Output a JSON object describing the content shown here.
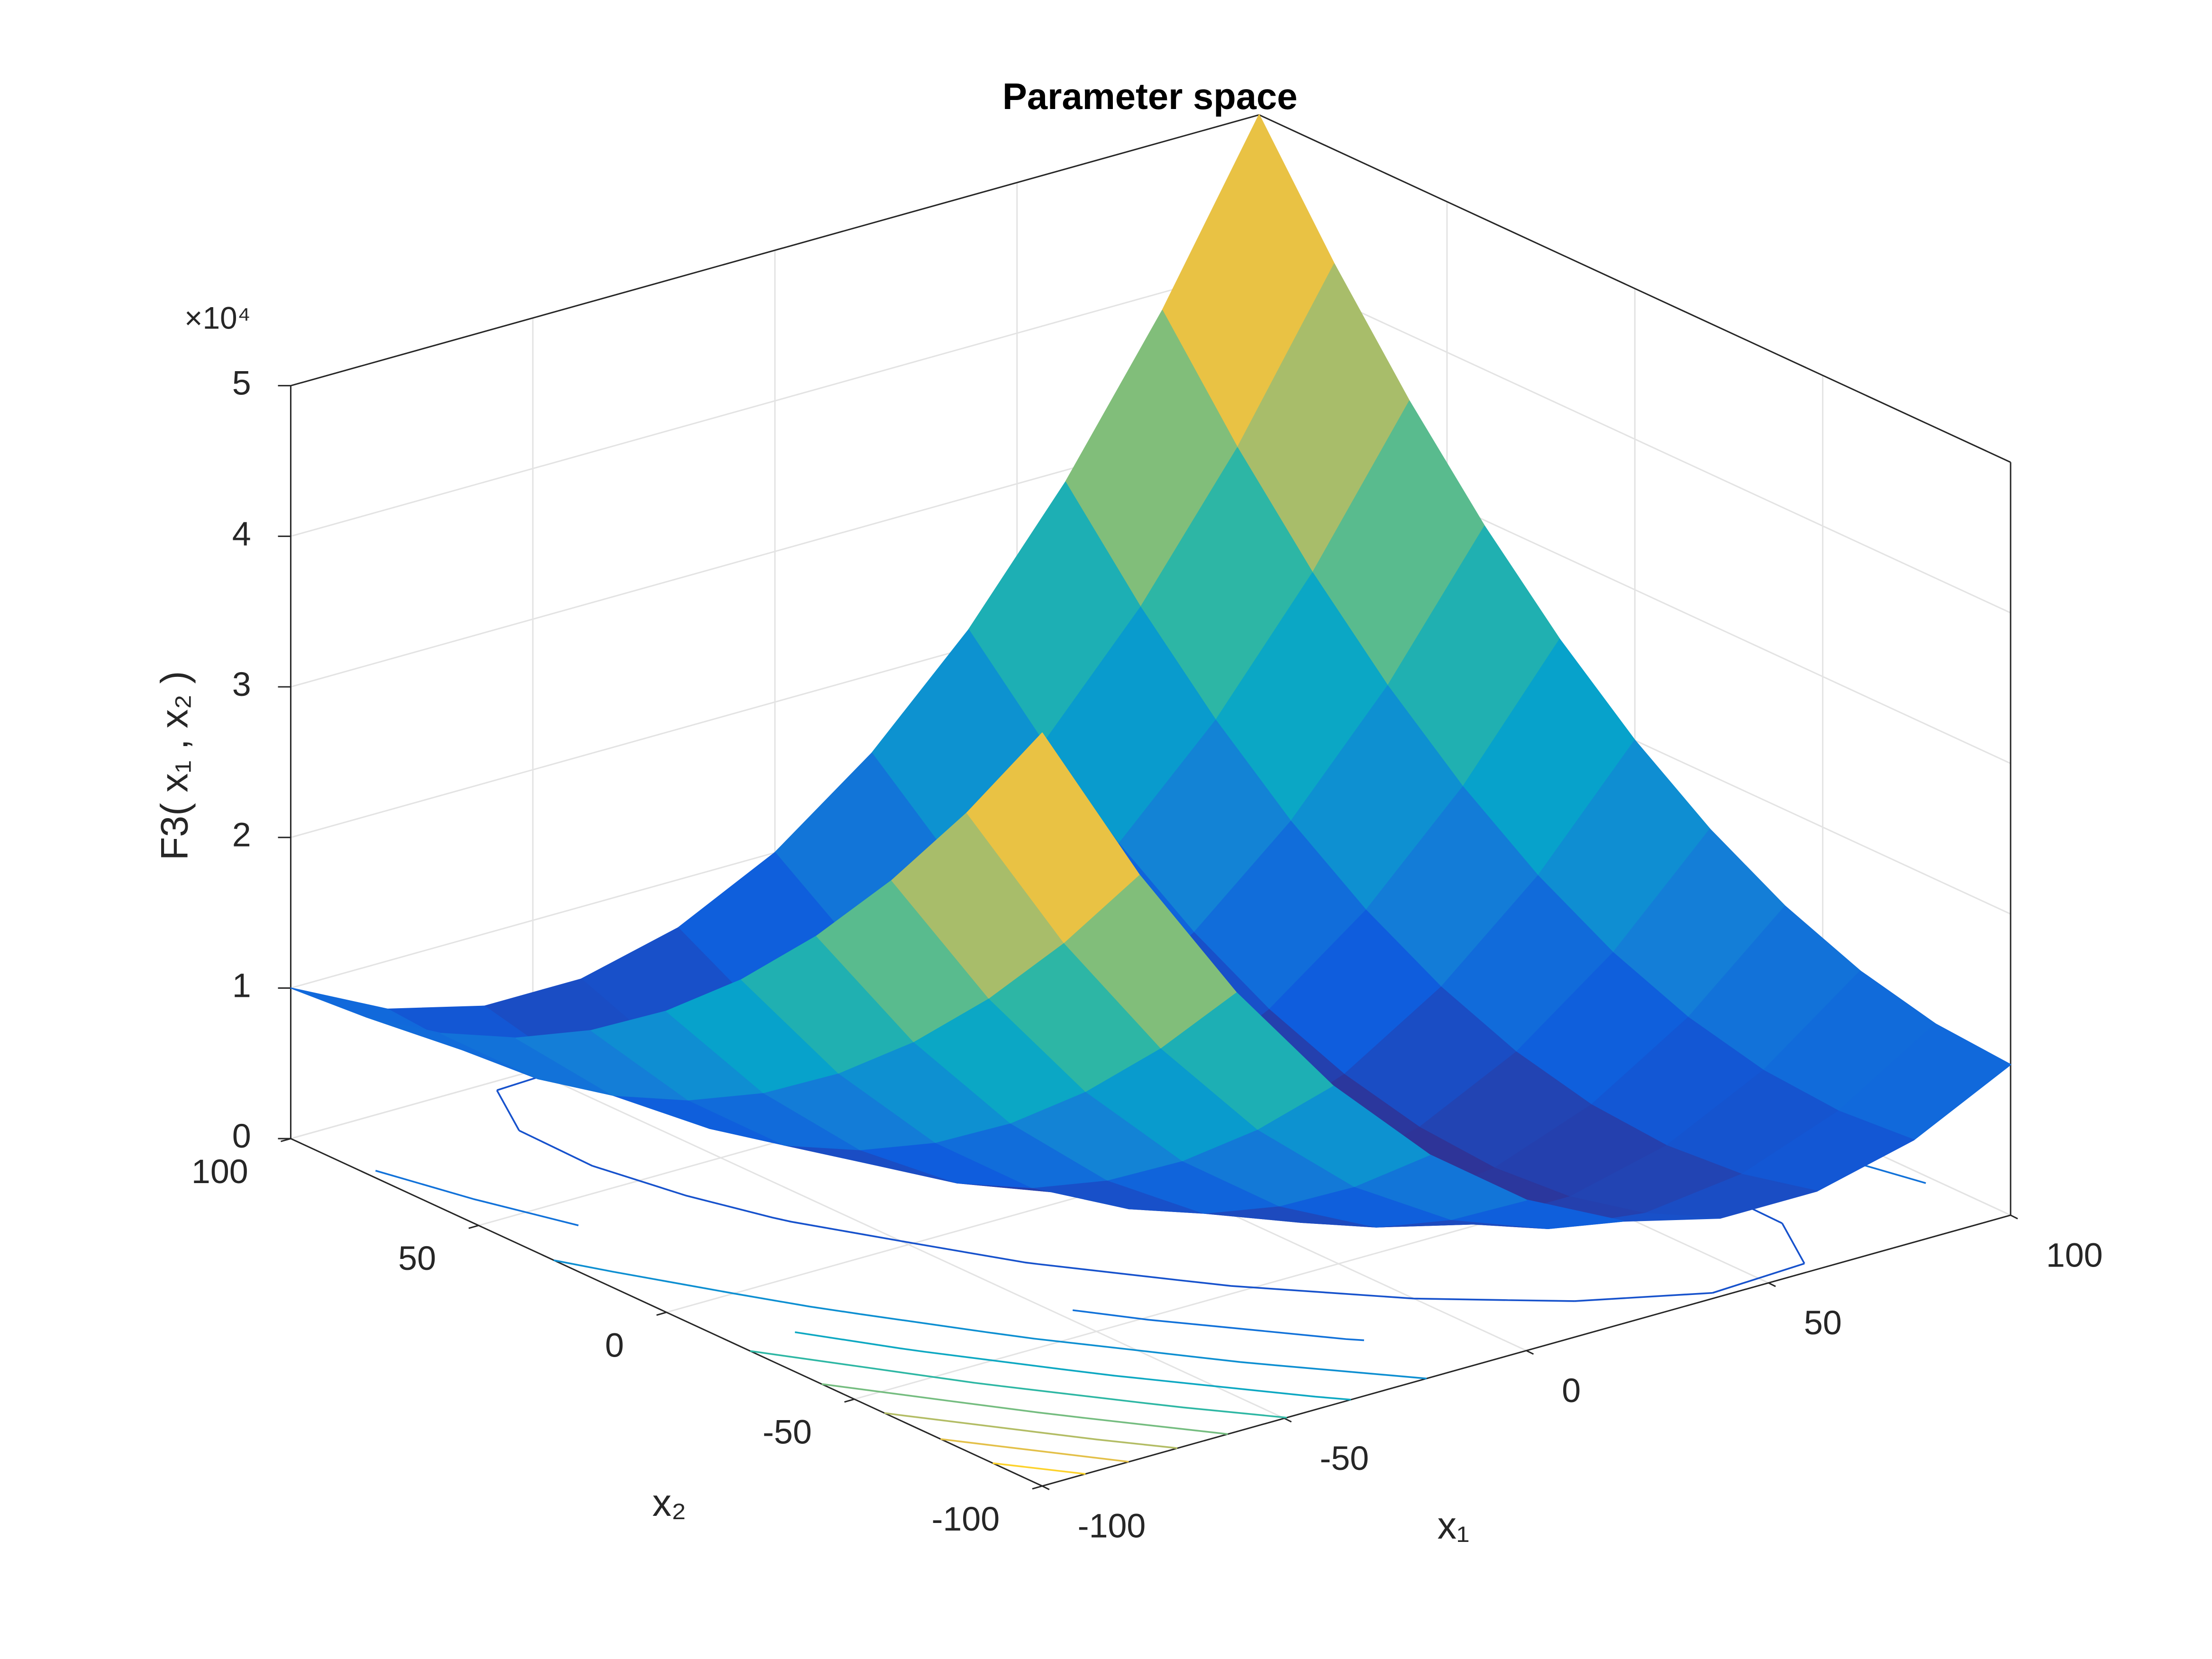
{
  "chart_data": {
    "type": "surface",
    "title": "Parameter space",
    "xlabel": "x₁",
    "ylabel": "x₂",
    "zlabel": "F3( x₁ , x₂ )",
    "z_multiplier": "×10⁴",
    "x": [
      -100,
      -80,
      -60,
      -40,
      -20,
      0,
      20,
      40,
      60,
      80,
      100
    ],
    "y": [
      -100,
      -80,
      -60,
      -40,
      -20,
      0,
      20,
      40,
      60,
      80,
      100
    ],
    "z": [
      [
        50000,
        38800,
        29200,
        21200,
        14800,
        10000,
        6800,
        5200,
        5200,
        6800,
        10000
      ],
      [
        42400,
        32000,
        23200,
        16000,
        10400,
        6400,
        4000,
        3200,
        4000,
        6400,
        10400
      ],
      [
        35600,
        26000,
        18000,
        11600,
        6800,
        3600,
        2000,
        2000,
        3600,
        6800,
        11600
      ],
      [
        29600,
        20800,
        13600,
        8000,
        4000,
        1600,
        800,
        1600,
        4000,
        8000,
        13600
      ],
      [
        24400,
        16400,
        10000,
        5200,
        2000,
        400,
        400,
        2000,
        5200,
        10000,
        16400
      ],
      [
        20000,
        12800,
        7200,
        3200,
        800,
        0,
        800,
        3200,
        7200,
        12800,
        20000
      ],
      [
        16400,
        10000,
        5200,
        2000,
        400,
        400,
        2000,
        5200,
        10000,
        16400,
        24400
      ],
      [
        13600,
        8000,
        4000,
        1600,
        800,
        1600,
        4000,
        8000,
        13600,
        20800,
        29600
      ],
      [
        11600,
        6800,
        3600,
        2000,
        2000,
        3600,
        6800,
        11600,
        18000,
        26000,
        35600
      ],
      [
        10400,
        6400,
        4000,
        3200,
        4000,
        6400,
        10400,
        16000,
        23200,
        32000,
        42400
      ],
      [
        10000,
        6800,
        5200,
        5200,
        6800,
        10000,
        14800,
        21200,
        29200,
        38800,
        50000
      ]
    ],
    "xlim": [
      -100,
      100
    ],
    "ylim": [
      -100,
      100
    ],
    "zlim": [
      0,
      50000
    ],
    "xticks": [
      -100,
      -50,
      0,
      50,
      100
    ],
    "yticks": [
      -100,
      -50,
      0,
      50,
      100
    ],
    "zticks": [
      {
        "value": 0,
        "label": "0"
      },
      {
        "value": 10000,
        "label": "1"
      },
      {
        "value": 20000,
        "label": "2"
      },
      {
        "value": 30000,
        "label": "3"
      },
      {
        "value": 40000,
        "label": "4"
      },
      {
        "value": 50000,
        "label": "5"
      }
    ],
    "contour_levels": [
      5000,
      10000,
      15000,
      20000,
      25000,
      30000,
      35000,
      40000,
      45000
    ],
    "grid": true,
    "colormap": [
      "#352a87",
      "#0f5cdd",
      "#1481d6",
      "#06a4ca",
      "#2eb7a4",
      "#87bf77",
      "#d1bb59",
      "#fec832",
      "#f9fb0e"
    ]
  }
}
